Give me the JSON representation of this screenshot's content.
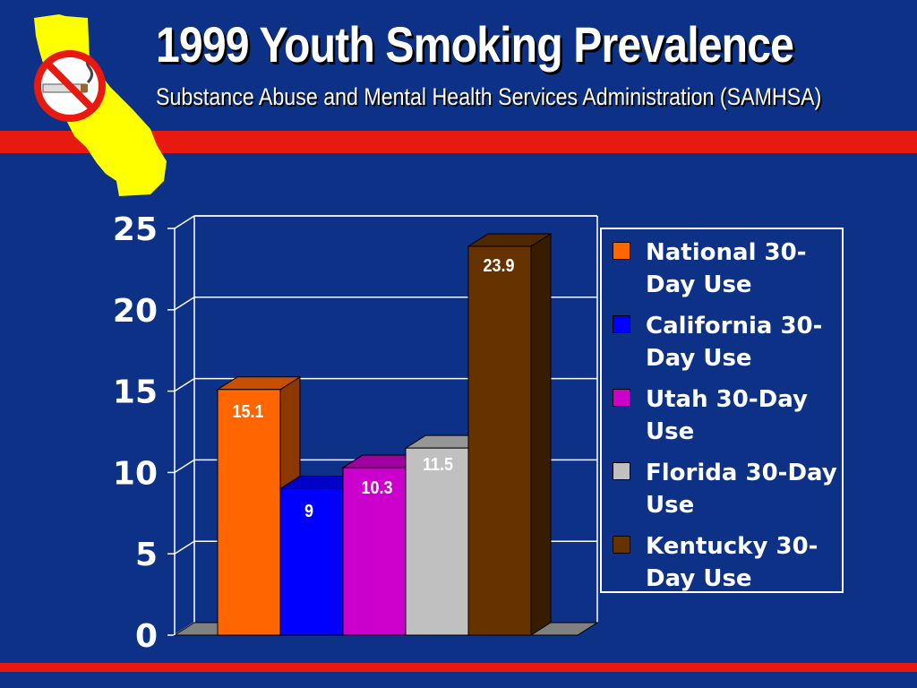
{
  "slide": {
    "title": "1999 Youth Smoking Prevalence",
    "subtitle": "Substance Abuse and Mental Health Services Administration (SAMHSA)"
  },
  "logo": {
    "icon": "california-no-smoking-logo"
  },
  "colors": {
    "background": "#0c3186",
    "stripe": "#e8190f",
    "logo_state": "#ffff00",
    "no_sign": "#e8190f"
  },
  "chart_data": {
    "type": "bar",
    "categories": [
      "National 30-Day Use",
      "California 30-Day Use",
      "Utah 30-Day Use",
      "Florida 30-Day Use",
      "Kentucky 30-Day Use"
    ],
    "values": [
      15.1,
      9,
      10.3,
      11.5,
      23.9
    ],
    "data_labels": [
      "15.1",
      "9",
      "10.3",
      "11.5",
      "23.9"
    ],
    "colors": [
      "#ff6600",
      "#0000ff",
      "#cc00cc",
      "#c0c0c0",
      "#663300"
    ],
    "ylim": [
      0,
      25
    ],
    "yticks": [
      "0",
      "5",
      "10",
      "15",
      "20",
      "25"
    ],
    "grid": true,
    "legend_position": "right",
    "title": "",
    "xlabel": "",
    "ylabel": ""
  }
}
